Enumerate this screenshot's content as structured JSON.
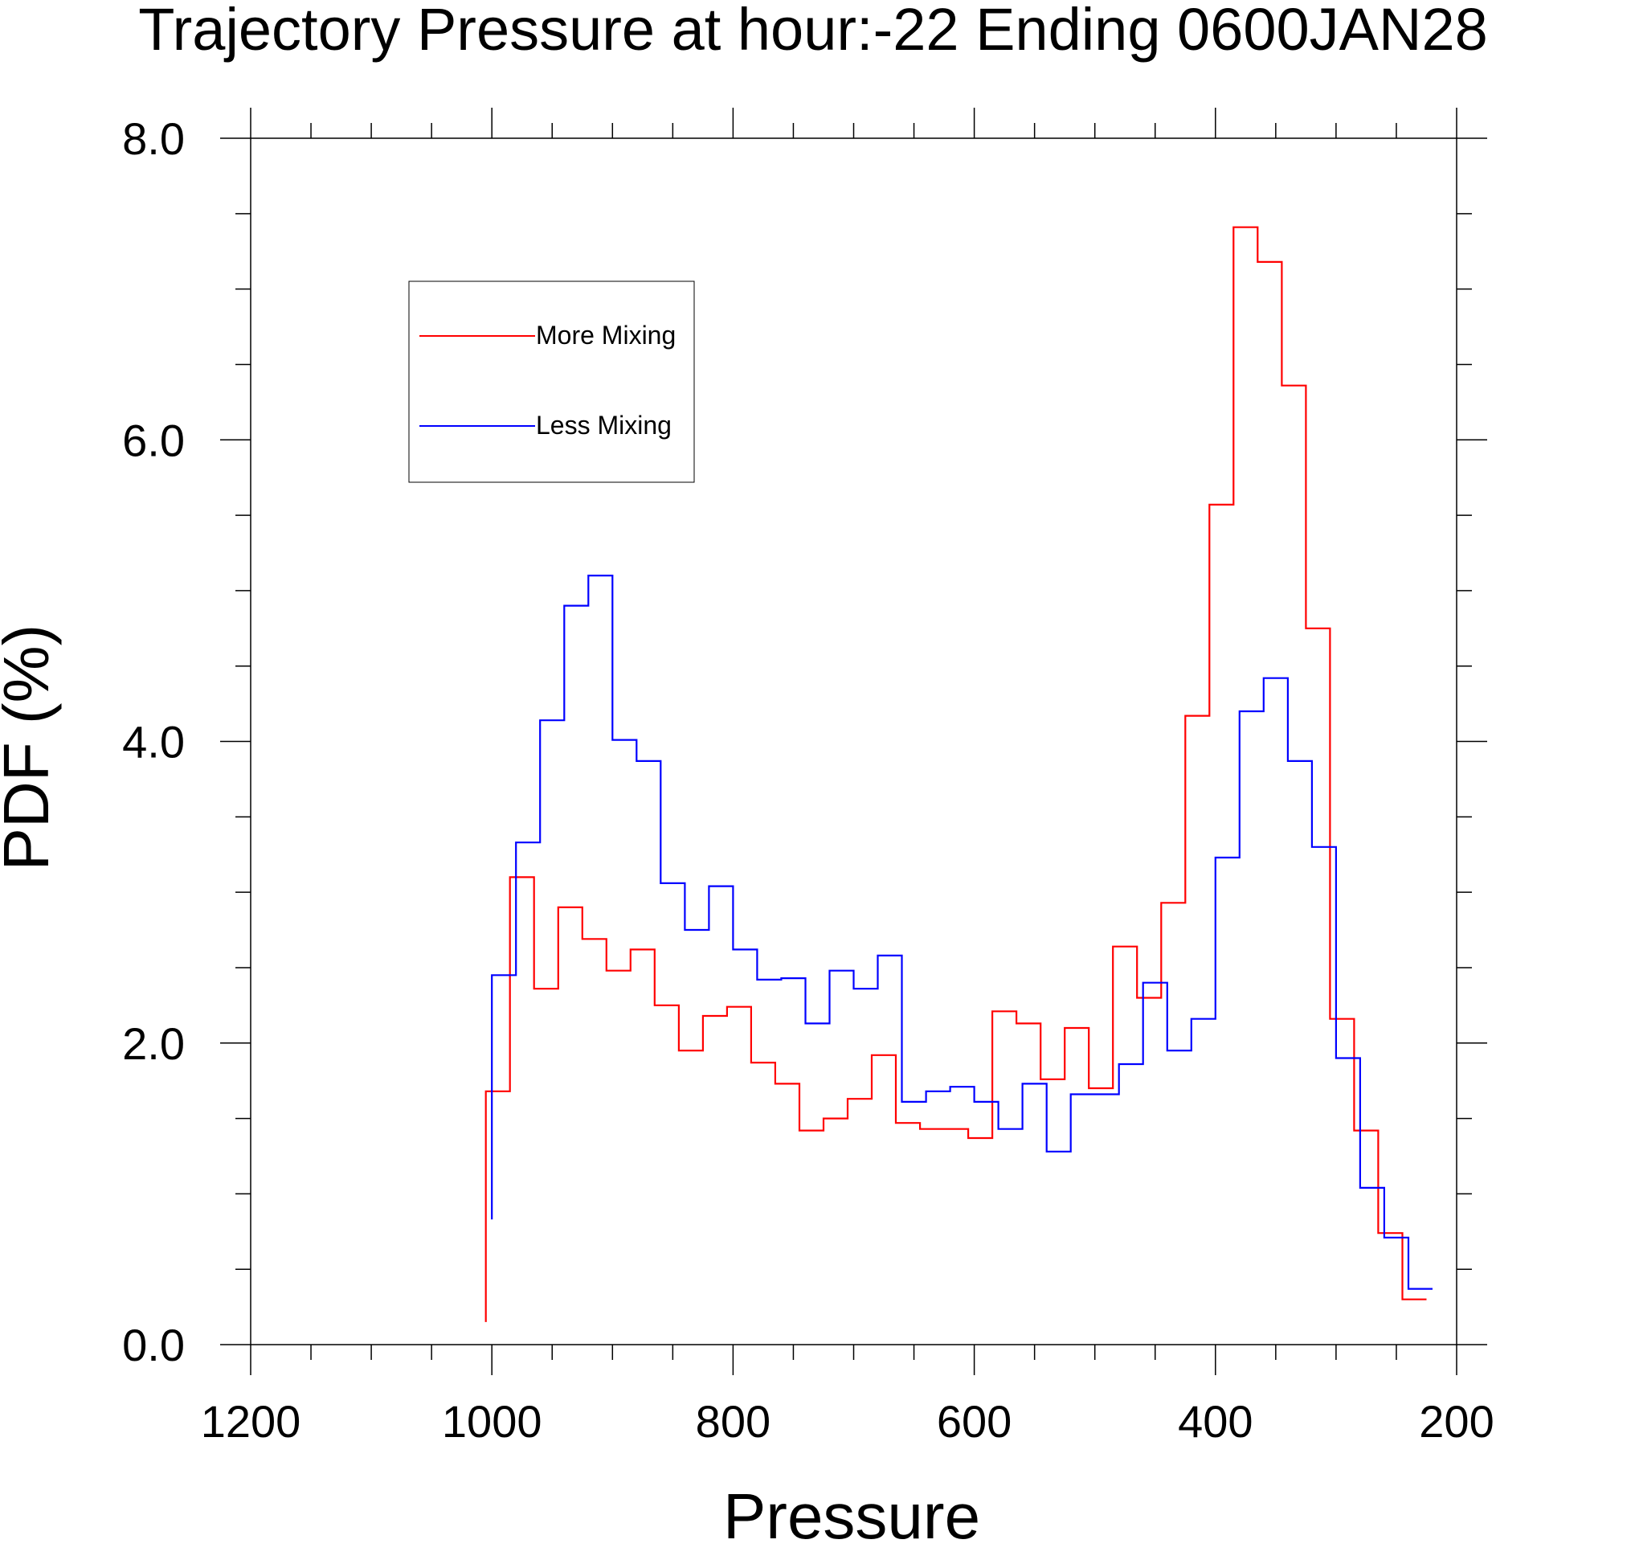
{
  "chart_data": {
    "type": "line",
    "title": "Trajectory Pressure at hour:-22 Ending 0600JAN28",
    "xlabel": "Pressure",
    "ylabel": "PDF (%)",
    "xlim": [
      1200,
      200
    ],
    "ylim": [
      0,
      8
    ],
    "x_reversed": true,
    "x_ticks": [
      1200,
      1000,
      800,
      600,
      400,
      200
    ],
    "x_tick_labels": [
      "1200",
      "1000",
      "800",
      "600",
      "400",
      "200"
    ],
    "y_ticks": [
      0,
      2,
      4,
      6,
      8
    ],
    "y_tick_labels": [
      "0.0",
      "2.0",
      "4.0",
      "6.0",
      "8.0"
    ],
    "legend_position": "top-left",
    "series": [
      {
        "name": "More Mixing",
        "color": "#ff0000",
        "points": [
          [
            1005,
            0.15
          ],
          [
            1005,
            1.68
          ],
          [
            985,
            1.68
          ],
          [
            985,
            3.1
          ],
          [
            965,
            3.1
          ],
          [
            965,
            2.36
          ],
          [
            945,
            2.36
          ],
          [
            945,
            2.9
          ],
          [
            925,
            2.9
          ],
          [
            925,
            2.69
          ],
          [
            905,
            2.69
          ],
          [
            905,
            2.48
          ],
          [
            885,
            2.48
          ],
          [
            885,
            2.62
          ],
          [
            865,
            2.62
          ],
          [
            865,
            2.25
          ],
          [
            845,
            2.25
          ],
          [
            845,
            1.95
          ],
          [
            825,
            1.95
          ],
          [
            825,
            2.18
          ],
          [
            805,
            2.18
          ],
          [
            805,
            2.24
          ],
          [
            785,
            2.24
          ],
          [
            785,
            1.87
          ],
          [
            765,
            1.87
          ],
          [
            765,
            1.73
          ],
          [
            745,
            1.73
          ],
          [
            745,
            1.42
          ],
          [
            725,
            1.42
          ],
          [
            725,
            1.5
          ],
          [
            705,
            1.5
          ],
          [
            705,
            1.63
          ],
          [
            685,
            1.63
          ],
          [
            685,
            1.92
          ],
          [
            665,
            1.92
          ],
          [
            665,
            1.47
          ],
          [
            645,
            1.47
          ],
          [
            645,
            1.43
          ],
          [
            625,
            1.43
          ],
          [
            625,
            1.43
          ],
          [
            605,
            1.43
          ],
          [
            605,
            1.37
          ],
          [
            585,
            1.37
          ],
          [
            585,
            2.21
          ],
          [
            565,
            2.21
          ],
          [
            565,
            2.13
          ],
          [
            545,
            2.13
          ],
          [
            545,
            1.76
          ],
          [
            525,
            1.76
          ],
          [
            525,
            2.1
          ],
          [
            505,
            2.1
          ],
          [
            505,
            1.7
          ],
          [
            485,
            1.7
          ],
          [
            485,
            2.64
          ],
          [
            465,
            2.64
          ],
          [
            465,
            2.3
          ],
          [
            445,
            2.3
          ],
          [
            445,
            2.93
          ],
          [
            425,
            2.93
          ],
          [
            425,
            4.17
          ],
          [
            405,
            4.17
          ],
          [
            405,
            5.57
          ],
          [
            385,
            5.57
          ],
          [
            385,
            7.41
          ],
          [
            365,
            7.41
          ],
          [
            365,
            7.18
          ],
          [
            345,
            7.18
          ],
          [
            345,
            6.36
          ],
          [
            325,
            6.36
          ],
          [
            325,
            4.75
          ],
          [
            305,
            4.75
          ],
          [
            305,
            2.16
          ],
          [
            285,
            2.16
          ],
          [
            285,
            1.42
          ],
          [
            265,
            1.42
          ],
          [
            265,
            0.74
          ],
          [
            245,
            0.74
          ],
          [
            245,
            0.3
          ],
          [
            225,
            0.3
          ]
        ]
      },
      {
        "name": "Less Mixing",
        "color": "#0000ff",
        "points": [
          [
            1000,
            0.83
          ],
          [
            1000,
            2.45
          ],
          [
            980,
            2.45
          ],
          [
            980,
            3.33
          ],
          [
            960,
            3.33
          ],
          [
            960,
            4.14
          ],
          [
            940,
            4.14
          ],
          [
            940,
            4.9
          ],
          [
            920,
            4.9
          ],
          [
            920,
            5.1
          ],
          [
            900,
            5.1
          ],
          [
            900,
            4.01
          ],
          [
            880,
            4.01
          ],
          [
            880,
            3.87
          ],
          [
            860,
            3.87
          ],
          [
            860,
            3.06
          ],
          [
            840,
            3.06
          ],
          [
            840,
            2.75
          ],
          [
            820,
            2.75
          ],
          [
            820,
            3.04
          ],
          [
            800,
            3.04
          ],
          [
            800,
            2.62
          ],
          [
            780,
            2.62
          ],
          [
            780,
            2.42
          ],
          [
            760,
            2.42
          ],
          [
            760,
            2.43
          ],
          [
            740,
            2.43
          ],
          [
            740,
            2.13
          ],
          [
            720,
            2.13
          ],
          [
            720,
            2.48
          ],
          [
            700,
            2.48
          ],
          [
            700,
            2.36
          ],
          [
            680,
            2.36
          ],
          [
            680,
            2.58
          ],
          [
            660,
            2.58
          ],
          [
            660,
            1.61
          ],
          [
            640,
            1.61
          ],
          [
            640,
            1.68
          ],
          [
            620,
            1.68
          ],
          [
            620,
            1.71
          ],
          [
            600,
            1.71
          ],
          [
            600,
            1.61
          ],
          [
            580,
            1.61
          ],
          [
            580,
            1.43
          ],
          [
            560,
            1.43
          ],
          [
            560,
            1.73
          ],
          [
            540,
            1.73
          ],
          [
            540,
            1.28
          ],
          [
            520,
            1.28
          ],
          [
            520,
            1.66
          ],
          [
            500,
            1.66
          ],
          [
            500,
            1.66
          ],
          [
            480,
            1.66
          ],
          [
            480,
            1.86
          ],
          [
            460,
            1.86
          ],
          [
            460,
            2.4
          ],
          [
            440,
            2.4
          ],
          [
            440,
            1.95
          ],
          [
            420,
            1.95
          ],
          [
            420,
            2.16
          ],
          [
            400,
            2.16
          ],
          [
            400,
            3.23
          ],
          [
            380,
            3.23
          ],
          [
            380,
            4.2
          ],
          [
            360,
            4.2
          ],
          [
            360,
            4.42
          ],
          [
            340,
            4.42
          ],
          [
            340,
            3.87
          ],
          [
            320,
            3.87
          ],
          [
            320,
            3.3
          ],
          [
            300,
            3.3
          ],
          [
            300,
            1.9
          ],
          [
            280,
            1.9
          ],
          [
            280,
            1.04
          ],
          [
            260,
            1.04
          ],
          [
            260,
            0.71
          ],
          [
            240,
            0.71
          ],
          [
            240,
            0.37
          ],
          [
            220,
            0.37
          ]
        ]
      }
    ]
  }
}
